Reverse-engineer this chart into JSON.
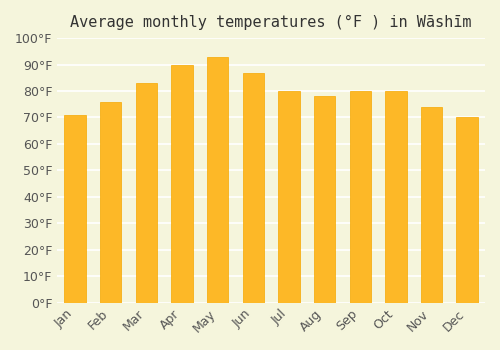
{
  "title": "Average monthly temperatures (°F ) in Wāshīm",
  "months": [
    "Jan",
    "Feb",
    "Mar",
    "Apr",
    "May",
    "Jun",
    "Jul",
    "Aug",
    "Sep",
    "Oct",
    "Nov",
    "Dec"
  ],
  "values": [
    71,
    76,
    83,
    90,
    93,
    87,
    80,
    78,
    80,
    80,
    74,
    70
  ],
  "bar_color": "#FDB827",
  "bar_edge_color": "#F5A800",
  "background_color": "#F5F5DC",
  "grid_color": "#FFFFFF",
  "ylim": [
    0,
    100
  ],
  "ytick_step": 10,
  "title_fontsize": 11,
  "tick_fontsize": 9
}
